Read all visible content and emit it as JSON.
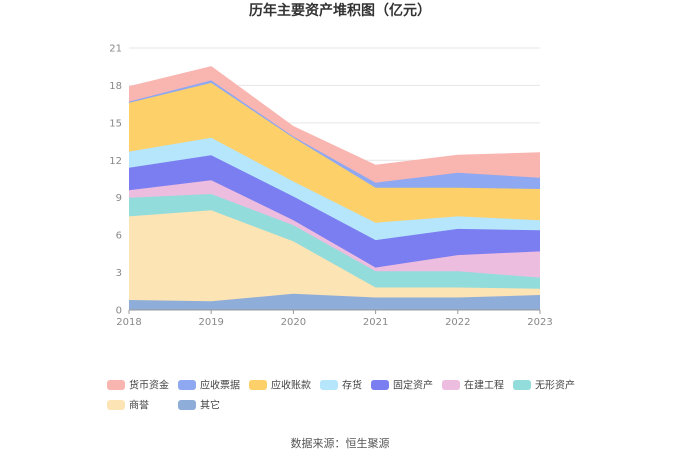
{
  "chart_data": {
    "type": "area",
    "stacked": true,
    "title": "历年主要资产堆积图（亿元）",
    "x": [
      "2018",
      "2019",
      "2020",
      "2021",
      "2022",
      "2023"
    ],
    "ylim": [
      0,
      21
    ],
    "yticks": [
      "0",
      "3",
      "6",
      "9",
      "12",
      "15",
      "18",
      "21"
    ],
    "grid": true,
    "legend_position": "bottom",
    "series": [
      {
        "name": "其它",
        "color": "#8fadd9",
        "values": [
          0.8,
          0.7,
          1.3,
          1.0,
          1.0,
          1.2
        ]
      },
      {
        "name": "商誉",
        "color": "#fde4b4",
        "values": [
          6.7,
          7.3,
          4.2,
          0.8,
          0.8,
          0.5
        ]
      },
      {
        "name": "无形资产",
        "color": "#93dcdc",
        "values": [
          1.5,
          1.3,
          1.3,
          1.3,
          1.3,
          0.9
        ]
      },
      {
        "name": "在建工程",
        "color": "#edbde0",
        "values": [
          0.6,
          1.1,
          0.4,
          0.3,
          1.3,
          2.1
        ]
      },
      {
        "name": "固定资产",
        "color": "#7b7ef0",
        "values": [
          1.8,
          2.0,
          1.9,
          2.2,
          2.1,
          1.7
        ]
      },
      {
        "name": "存货",
        "color": "#b6e6fb",
        "values": [
          1.3,
          1.4,
          1.2,
          1.4,
          1.0,
          0.8
        ]
      },
      {
        "name": "应收账款",
        "color": "#fdd06a",
        "values": [
          3.9,
          4.4,
          3.5,
          2.8,
          2.3,
          2.5
        ]
      },
      {
        "name": "应收票据",
        "color": "#8fa8f2",
        "values": [
          0.1,
          0.2,
          0.1,
          0.4,
          1.2,
          0.9
        ]
      },
      {
        "name": "货币资金",
        "color": "#f9b5b0",
        "values": [
          1.2,
          1.1,
          0.8,
          1.4,
          1.4,
          2.0
        ]
      }
    ],
    "legend_order": [
      "货币资金",
      "应收票据",
      "应收账款",
      "存货",
      "固定资产",
      "在建工程",
      "无形资产",
      "商誉",
      "其它"
    ]
  },
  "source": "数据来源：恒生聚源"
}
